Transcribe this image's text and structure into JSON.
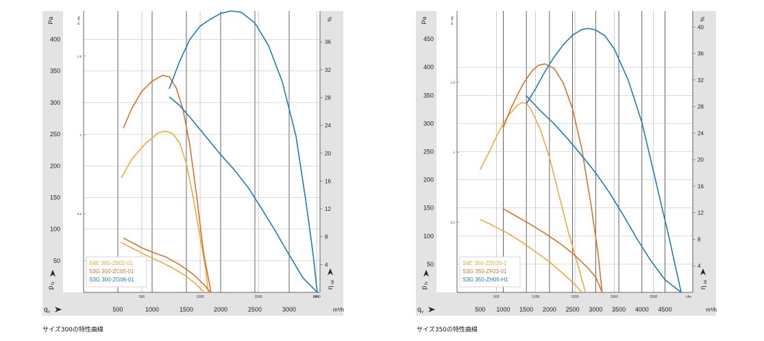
{
  "captions": [
    "サイズ300の特性曲線",
    "サイズ350の特性曲線"
  ],
  "chart_data": [
    {
      "type": "line",
      "title": "",
      "y_unit": "Pa",
      "y_sub_unit": "in. wg",
      "eff_unit": "%",
      "x_unit": "m³/h",
      "x_sub_unit": "cfm",
      "pressure_symbol": "p",
      "pressure_sub": "fs",
      "flow_symbol": "q",
      "flow_sub": "v",
      "eff_symbol": "η",
      "eff_sub": "se",
      "xlim": [
        0,
        3450
      ],
      "ylim": [
        0,
        445
      ],
      "eff_lim": [
        0,
        40.45
      ],
      "x_ticks": [
        500,
        1000,
        1500,
        2000,
        2500,
        3000
      ],
      "y_ticks": [
        50,
        100,
        150,
        200,
        250,
        300,
        350,
        400
      ],
      "y_grid": [
        50,
        100,
        150,
        200,
        250,
        300,
        350,
        400
      ],
      "eff_ticks": [
        4,
        8,
        12,
        16,
        20,
        24,
        28,
        32,
        36
      ],
      "cfm_ticks": [
        500,
        1000,
        1500,
        2000
      ],
      "inwg_ticks": [
        0.5,
        1,
        1.5
      ],
      "v_grid_m3h": [
        500,
        1000,
        1500,
        2000,
        2500,
        3000
      ],
      "v_grid_cfm": [
        500,
        1000,
        1500,
        2000
      ],
      "series": [
        {
          "name": "S4E 300-ZB02-01",
          "color": "#f2a83a",
          "pressure": [
            [
              550,
              181
            ],
            [
              700,
              210
            ],
            [
              900,
              235
            ],
            [
              1100,
              253
            ],
            [
              1200,
              255
            ],
            [
              1300,
              251
            ],
            [
              1400,
              237
            ],
            [
              1500,
              204
            ],
            [
              1600,
              150
            ],
            [
              1700,
              88
            ],
            [
              1780,
              38
            ],
            [
              1820,
              0
            ]
          ],
          "efficiency": [
            [
              540,
              7.2
            ],
            [
              700,
              6.4
            ],
            [
              900,
              5.4
            ],
            [
              1100,
              4.5
            ],
            [
              1300,
              3.5
            ],
            [
              1500,
              2.3
            ],
            [
              1650,
              1.1
            ],
            [
              1760,
              0
            ]
          ]
        },
        {
          "name": "S3G 300-ZC05-01",
          "color": "#d8712b",
          "pressure": [
            [
              580,
              260
            ],
            [
              700,
              290
            ],
            [
              850,
              318
            ],
            [
              1000,
              334
            ],
            [
              1150,
              343
            ],
            [
              1250,
              341
            ],
            [
              1350,
              324
            ],
            [
              1450,
              290
            ],
            [
              1550,
              233
            ],
            [
              1650,
              153
            ],
            [
              1750,
              63
            ],
            [
              1860,
              0
            ]
          ],
          "efficiency": [
            [
              580,
              7.8
            ],
            [
              700,
              7.2
            ],
            [
              850,
              6.4
            ],
            [
              1000,
              5.8
            ],
            [
              1200,
              5.1
            ],
            [
              1400,
              4.0
            ],
            [
              1600,
              2.6
            ],
            [
              1760,
              1.1
            ],
            [
              1850,
              0
            ]
          ]
        },
        {
          "name": "S3G 300-ZG06-01",
          "color": "#1d7ab5",
          "pressure": [
            [
              1250,
              322
            ],
            [
              1400,
              365
            ],
            [
              1550,
              400
            ],
            [
              1700,
              421
            ],
            [
              1850,
              432
            ],
            [
              2000,
              441
            ],
            [
              2150,
              445
            ],
            [
              2300,
              443
            ],
            [
              2500,
              426
            ],
            [
              2700,
              390
            ],
            [
              2900,
              333
            ],
            [
              3100,
              247
            ],
            [
              3250,
              140
            ],
            [
              3350,
              60
            ],
            [
              3410,
              0
            ]
          ],
          "efficiency": [
            [
              1250,
              28.1
            ],
            [
              1400,
              26.9
            ],
            [
              1600,
              24.6
            ],
            [
              1800,
              22.2
            ],
            [
              2000,
              19.8
            ],
            [
              2200,
              17.6
            ],
            [
              2400,
              15.1
            ],
            [
              2600,
              12.0
            ],
            [
              2800,
              8.8
            ],
            [
              3000,
              5.4
            ],
            [
              3200,
              2.1
            ],
            [
              3410,
              0
            ]
          ]
        }
      ]
    },
    {
      "type": "line",
      "title": "",
      "y_unit": "Pa",
      "y_sub_unit": "in. wg",
      "eff_unit": "%",
      "x_unit": "m³/h",
      "x_sub_unit": "cfm",
      "pressure_symbol": "p",
      "pressure_sub": "fs",
      "flow_symbol": "q",
      "flow_sub": "v",
      "eff_symbol": "η",
      "eff_sub": "se",
      "xlim": [
        0,
        5100
      ],
      "ylim": [
        0,
        500
      ],
      "eff_lim": [
        0,
        42.4
      ],
      "x_ticks": [
        500,
        1000,
        1500,
        2000,
        2500,
        3000,
        3500,
        4000,
        4500
      ],
      "y_ticks": [
        50,
        100,
        150,
        200,
        250,
        300,
        350,
        400,
        450
      ],
      "y_grid": [
        50,
        100,
        150,
        200,
        250,
        300,
        350,
        400
      ],
      "eff_ticks": [
        4,
        8,
        12,
        16,
        20,
        24,
        28,
        32,
        36,
        40
      ],
      "cfm_ticks": [
        500,
        1000,
        1500,
        2000,
        2500
      ],
      "inwg_ticks": [
        0.5,
        1,
        1.5
      ],
      "v_grid_m3h": [
        1000,
        1500,
        2000,
        2500,
        3000,
        3500,
        4000,
        4500
      ],
      "v_grid_cfm": [
        500,
        1000,
        1500,
        2000,
        2500
      ],
      "series": [
        {
          "name": "S4E 350-ZD020-1",
          "color": "#f2a83a",
          "pressure": [
            [
              500,
              218
            ],
            [
              700,
              250
            ],
            [
              900,
              285
            ],
            [
              1100,
              313
            ],
            [
              1300,
              332
            ],
            [
              1400,
              337
            ],
            [
              1500,
              336
            ],
            [
              1600,
              325
            ],
            [
              1800,
              290
            ],
            [
              2000,
              240
            ],
            [
              2200,
              175
            ],
            [
              2400,
              110
            ],
            [
              2600,
              53
            ],
            [
              2780,
              0
            ]
          ],
          "efficiency": [
            [
              500,
              11.0
            ],
            [
              800,
              10.0
            ],
            [
              1100,
              8.9
            ],
            [
              1400,
              7.6
            ],
            [
              1700,
              6.1
            ],
            [
              2000,
              4.6
            ],
            [
              2300,
              2.8
            ],
            [
              2550,
              1.2
            ],
            [
              2700,
              0
            ]
          ]
        },
        {
          "name": "S3G 350-ZF03-01",
          "color": "#d8712b",
          "pressure": [
            [
              1000,
              293
            ],
            [
              1150,
              324
            ],
            [
              1300,
              350
            ],
            [
              1450,
              373
            ],
            [
              1600,
              391
            ],
            [
              1750,
              403
            ],
            [
              1900,
              406
            ],
            [
              2100,
              398
            ],
            [
              2300,
              372
            ],
            [
              2500,
              326
            ],
            [
              2700,
              255
            ],
            [
              2900,
              155
            ],
            [
              3050,
              70
            ],
            [
              3140,
              0
            ]
          ],
          "efficiency": [
            [
              1000,
              12.6
            ],
            [
              1300,
              11.4
            ],
            [
              1600,
              10.2
            ],
            [
              1900,
              8.9
            ],
            [
              2200,
              7.5
            ],
            [
              2500,
              5.9
            ],
            [
              2800,
              3.9
            ],
            [
              3000,
              2.3
            ],
            [
              3140,
              0
            ]
          ]
        },
        {
          "name": "S3G 350-ZH05-H1",
          "color": "#1d7ab5",
          "pressure": [
            [
              1500,
              335
            ],
            [
              1700,
              362
            ],
            [
              1900,
              392
            ],
            [
              2100,
              418
            ],
            [
              2300,
              440
            ],
            [
              2500,
              457
            ],
            [
              2700,
              467
            ],
            [
              2850,
              469
            ],
            [
              3000,
              466
            ],
            [
              3200,
              456
            ],
            [
              3400,
              433
            ],
            [
              3700,
              378
            ],
            [
              4000,
              302
            ],
            [
              4300,
              198
            ],
            [
              4600,
              93
            ],
            [
              4850,
              0
            ]
          ],
          "efficiency": [
            [
              1500,
              29.6
            ],
            [
              1800,
              27.4
            ],
            [
              2100,
              25.4
            ],
            [
              2400,
              23.1
            ],
            [
              2700,
              20.6
            ],
            [
              3000,
              18.0
            ],
            [
              3300,
              15.0
            ],
            [
              3600,
              11.6
            ],
            [
              3900,
              8.0
            ],
            [
              4200,
              4.7
            ],
            [
              4500,
              1.9
            ],
            [
              4850,
              0
            ]
          ]
        }
      ]
    }
  ]
}
